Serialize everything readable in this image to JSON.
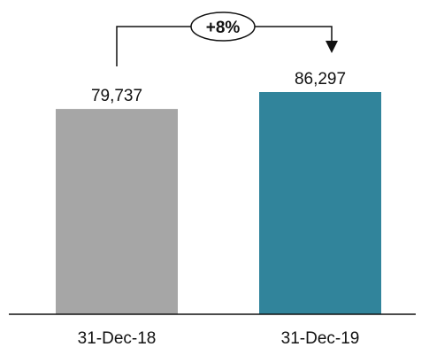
{
  "chart_data": {
    "type": "bar",
    "categories": [
      "31-Dec-18",
      "31-Dec-19"
    ],
    "values": [
      79737,
      86297
    ],
    "value_labels": [
      "79,737",
      "86,297"
    ],
    "colors": [
      "#a6a6a6",
      "#31849b"
    ],
    "change_label": "+8%",
    "title": "",
    "xlabel": "",
    "ylabel": "",
    "ylim": [
      0,
      90000
    ],
    "grid": false,
    "legend": "none"
  }
}
